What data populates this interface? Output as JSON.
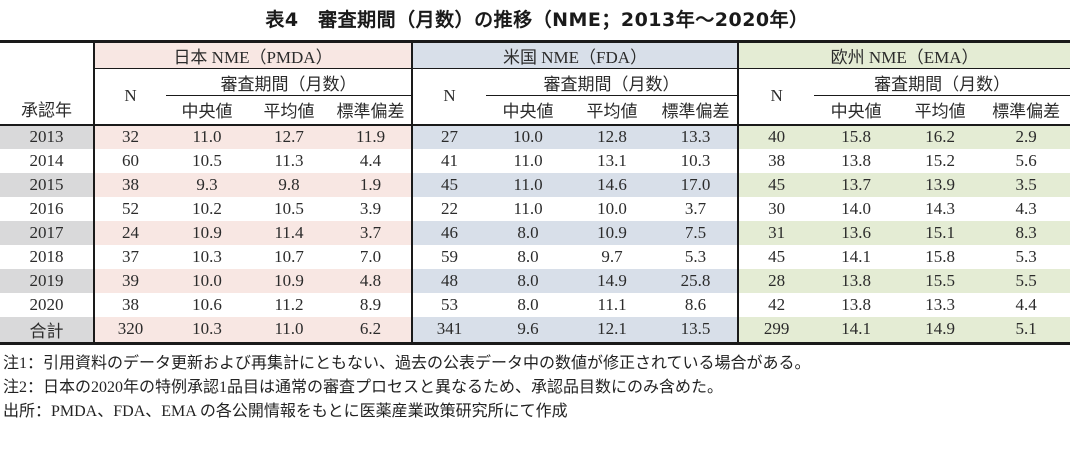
{
  "title": "表4　審査期間（月数）の推移（NME；2013年～2020年）",
  "colors": {
    "pmda_tint": "#f8e7e3",
    "fda_tint": "#d8dfe9",
    "ema_tint": "#e4ecd4",
    "year_row_grey": "#d9d9da",
    "border_black": "#1a1a1a"
  },
  "table": {
    "year_header": "承認年",
    "n_header": "N",
    "period_header": "審査期間（月数）",
    "stat_headers": [
      "中央値",
      "平均値",
      "標準偏差"
    ],
    "groups": [
      {
        "label": "日本 NME（PMDA）"
      },
      {
        "label": "米国 NME（FDA）"
      },
      {
        "label": "欧州 NME（EMA）"
      }
    ],
    "total_label": "合計",
    "rows": [
      {
        "year": "2013",
        "shaded": true,
        "total": false,
        "values": [
          [
            "32",
            "11.0",
            "12.7",
            "11.9"
          ],
          [
            "27",
            "10.0",
            "12.8",
            "13.3"
          ],
          [
            "40",
            "15.8",
            "16.2",
            "2.9"
          ]
        ]
      },
      {
        "year": "2014",
        "shaded": false,
        "total": false,
        "values": [
          [
            "60",
            "10.5",
            "11.3",
            "4.4"
          ],
          [
            "41",
            "11.0",
            "13.1",
            "10.3"
          ],
          [
            "38",
            "13.8",
            "15.2",
            "5.6"
          ]
        ]
      },
      {
        "year": "2015",
        "shaded": true,
        "total": false,
        "values": [
          [
            "38",
            "9.3",
            "9.8",
            "1.9"
          ],
          [
            "45",
            "11.0",
            "14.6",
            "17.0"
          ],
          [
            "45",
            "13.7",
            "13.9",
            "3.5"
          ]
        ]
      },
      {
        "year": "2016",
        "shaded": false,
        "total": false,
        "values": [
          [
            "52",
            "10.2",
            "10.5",
            "3.9"
          ],
          [
            "22",
            "11.0",
            "10.0",
            "3.7"
          ],
          [
            "30",
            "14.0",
            "14.3",
            "4.3"
          ]
        ]
      },
      {
        "year": "2017",
        "shaded": true,
        "total": false,
        "values": [
          [
            "24",
            "10.9",
            "11.4",
            "3.7"
          ],
          [
            "46",
            "8.0",
            "10.9",
            "7.5"
          ],
          [
            "31",
            "13.6",
            "15.1",
            "8.3"
          ]
        ]
      },
      {
        "year": "2018",
        "shaded": false,
        "total": false,
        "values": [
          [
            "37",
            "10.3",
            "10.7",
            "7.0"
          ],
          [
            "59",
            "8.0",
            "9.7",
            "5.3"
          ],
          [
            "45",
            "14.1",
            "15.8",
            "5.3"
          ]
        ]
      },
      {
        "year": "2019",
        "shaded": true,
        "total": false,
        "values": [
          [
            "39",
            "10.0",
            "10.9",
            "4.8"
          ],
          [
            "48",
            "8.0",
            "14.9",
            "25.8"
          ],
          [
            "28",
            "13.8",
            "15.5",
            "5.5"
          ]
        ]
      },
      {
        "year": "2020",
        "shaded": false,
        "total": false,
        "values": [
          [
            "38",
            "10.6",
            "11.2",
            "8.9"
          ],
          [
            "53",
            "8.0",
            "11.1",
            "8.6"
          ],
          [
            "42",
            "13.8",
            "13.3",
            "4.4"
          ]
        ]
      },
      {
        "year": "合計",
        "shaded": true,
        "total": true,
        "values": [
          [
            "320",
            "10.3",
            "11.0",
            "6.2"
          ],
          [
            "341",
            "9.6",
            "12.1",
            "13.5"
          ],
          [
            "299",
            "14.1",
            "14.9",
            "5.1"
          ]
        ]
      }
    ]
  },
  "footnotes": [
    "注1：引用資料のデータ更新および再集計にともない、過去の公表データ中の数値が修正されている場合がある。",
    "注2：日本の2020年の特例承認1品目は通常の審査プロセスと異なるため、承認品目数にのみ含めた。",
    "出所：PMDA、FDA、EMA の各公開情報をもとに医薬産業政策研究所にて作成"
  ]
}
